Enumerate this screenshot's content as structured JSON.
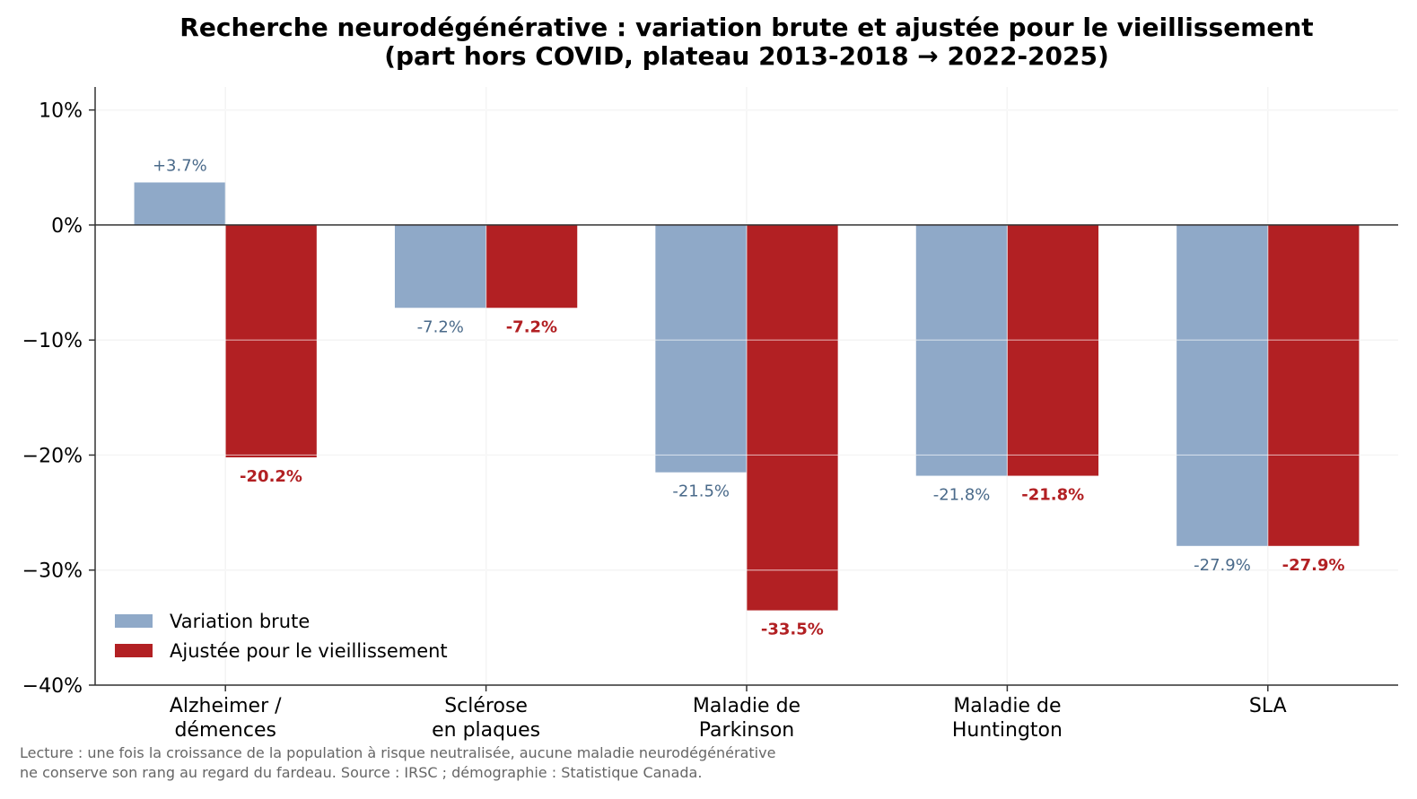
{
  "chart_data": {
    "type": "bar",
    "title": [
      "Recherche neurodégénérative : variation brute et ajustée pour le vieillissement",
      "(part hors COVID, plateau 2013-2018 → 2022-2025)"
    ],
    "categories": [
      [
        "Alzheimer /",
        "démences"
      ],
      [
        "Sclérose",
        "en plaques"
      ],
      [
        "Maladie de",
        "Parkinson"
      ],
      [
        "Maladie de",
        "Huntington"
      ],
      [
        "SLA"
      ]
    ],
    "series": [
      {
        "name": "Variation brute",
        "color": "#8fa9c8",
        "label_color": "#4a6a8a",
        "values": [
          3.7,
          -7.2,
          -21.5,
          -21.8,
          -27.9
        ],
        "labels": [
          "+3.7%",
          "-7.2%",
          "-21.5%",
          "-21.8%",
          "-27.9%"
        ]
      },
      {
        "name": "Ajustée pour le vieillissement",
        "color": "#b22023",
        "label_color": "#b22023",
        "values": [
          -20.2,
          -7.2,
          -33.5,
          -21.8,
          -27.9
        ],
        "labels": [
          "-20.2%",
          "-7.2%",
          "-33.5%",
          "-21.8%",
          "-27.9%"
        ]
      }
    ],
    "ylim": [
      -40,
      12
    ],
    "yticks": [
      10,
      0,
      -10,
      -20,
      -30,
      -40
    ],
    "ytick_labels": [
      "10%",
      "0%",
      "−10%",
      "−20%",
      "−30%",
      "−40%"
    ],
    "grid": true,
    "legend": "lower-left",
    "caption": [
      "Lecture : une fois la croissance de la population à risque neutralisée, aucune maladie neurodégénérative",
      "ne conserve son rang au regard du fardeau. Source : IRSC ; démographie : Statistique Canada."
    ]
  }
}
